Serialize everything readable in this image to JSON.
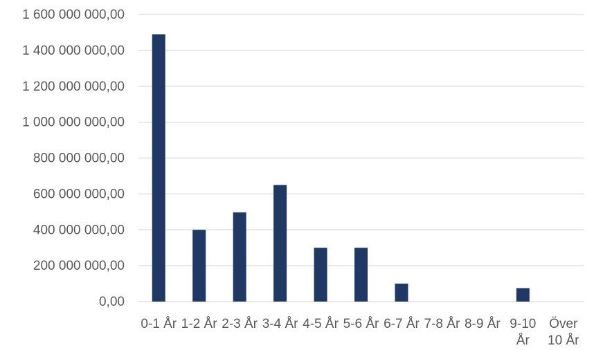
{
  "chart_data": {
    "type": "bar",
    "categories": [
      "0-1 År",
      "1-2 År",
      "2-3 År",
      "3-4 År",
      "4-5 År",
      "5-6 År",
      "6-7 År",
      "7-8 År",
      "8-9 År",
      "9-10 År",
      "Över 10 År"
    ],
    "x_tick_lines": [
      [
        "0-1 År"
      ],
      [
        "1-2 År"
      ],
      [
        "2-3 År"
      ],
      [
        "3-4 År"
      ],
      [
        "4-5 År"
      ],
      [
        "5-6 År"
      ],
      [
        "6-7 År"
      ],
      [
        "7-8 År"
      ],
      [
        "8-9 År"
      ],
      [
        "9-10",
        "År"
      ],
      [
        "Över",
        "10 År"
      ]
    ],
    "values": [
      1490000000,
      400000000,
      497000000,
      650000000,
      300000000,
      300000000,
      100000000,
      0,
      0,
      75000000,
      0
    ],
    "ylim": [
      0,
      1600000000
    ],
    "yticks": [
      0,
      200000000,
      400000000,
      600000000,
      800000000,
      1000000000,
      1200000000,
      1400000000,
      1600000000
    ],
    "ytick_labels": [
      "0,00",
      "200 000 000,00",
      "400 000 000,00",
      "600 000 000,00",
      "800 000 000,00",
      "1 000 000 000,00",
      "1 200 000 000,00",
      "1 400 000 000,00",
      "1 600 000 000,00"
    ],
    "bar_color": "#1f3864",
    "grid": true,
    "legend": "none"
  }
}
